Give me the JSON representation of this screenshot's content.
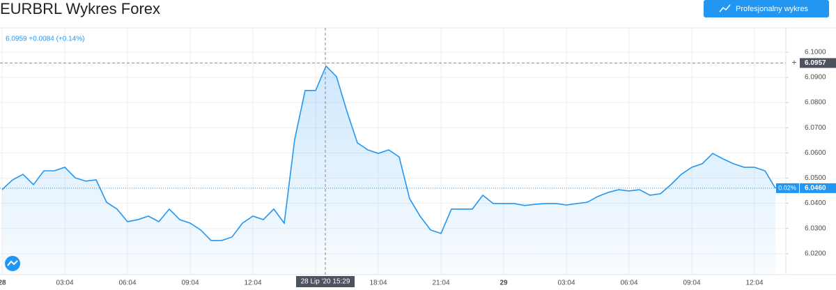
{
  "chart_data": {
    "type": "line",
    "title": "EURBRL Wykres Forex",
    "button": "Profesjonalny wykres",
    "legend_text": "6.0959 +0.0084 (+0.14%)",
    "crosshair_price": 6.0957,
    "crosshair_time": "28 Lip '20 15:29",
    "last_price": {
      "value": 6.046,
      "label": "6.0460"
    },
    "last_change": "0.02%",
    "color": "#2196f3",
    "categories": [
      "28",
      null,
      null,
      null,
      null,
      null,
      "03:04",
      null,
      null,
      null,
      null,
      null,
      "06:04",
      null,
      null,
      null,
      null,
      null,
      "09:04",
      null,
      null,
      null,
      null,
      null,
      "12:04",
      null,
      null,
      null,
      null,
      null,
      null,
      null,
      null,
      null,
      null,
      null,
      "18:04",
      null,
      null,
      null,
      null,
      null,
      "21:04",
      null,
      null,
      null,
      null,
      null,
      "29",
      null,
      null,
      null,
      null,
      null,
      "03:04",
      null,
      null,
      null,
      null,
      null,
      "06:04",
      null,
      null,
      null,
      null,
      null,
      "09:04",
      null,
      null,
      null,
      null,
      null,
      "12:04",
      null,
      null
    ],
    "values": [
      6.0454,
      6.0493,
      6.0515,
      6.0474,
      6.0529,
      6.0529,
      6.0543,
      6.0501,
      6.0488,
      6.0493,
      6.0404,
      6.0377,
      6.0327,
      6.0335,
      6.0349,
      6.0327,
      6.0377,
      6.0335,
      6.0321,
      6.0294,
      6.0252,
      6.0252,
      6.0266,
      6.0321,
      6.0349,
      6.0335,
      6.0377,
      6.0321,
      6.0654,
      6.0848,
      6.0848,
      6.0945,
      6.0903,
      6.0765,
      6.064,
      6.0612,
      6.0598,
      6.0612,
      6.0584,
      6.0418,
      6.0349,
      6.0294,
      6.028,
      6.0377,
      6.0377,
      6.0377,
      6.0432,
      6.0399,
      6.0399,
      6.0399,
      6.0391,
      6.0396,
      6.0399,
      6.0399,
      6.0393,
      6.0399,
      6.0404,
      6.0427,
      6.0443,
      6.0454,
      6.0449,
      6.0454,
      6.0432,
      6.0438,
      6.0474,
      6.0515,
      6.0543,
      6.0557,
      6.0598,
      6.0576,
      6.0557,
      6.0543,
      6.0543,
      6.0529,
      6.046
    ],
    "ylim": [
      6.0122,
      6.1091
    ],
    "yticks": [
      {
        "value": 6.02,
        "label": "6.0200"
      },
      {
        "value": 6.03,
        "label": "6.0300"
      },
      {
        "value": 6.04,
        "label": "6.0400"
      },
      {
        "value": 6.05,
        "label": "6.0500"
      },
      {
        "value": 6.06,
        "label": "6.0600"
      },
      {
        "value": 6.07,
        "label": "6.0700"
      },
      {
        "value": 6.08,
        "label": "6.0800"
      },
      {
        "value": 6.09,
        "label": "6.0900"
      },
      {
        "value": 6.1,
        "label": "6.1000"
      }
    ],
    "grid": true
  }
}
